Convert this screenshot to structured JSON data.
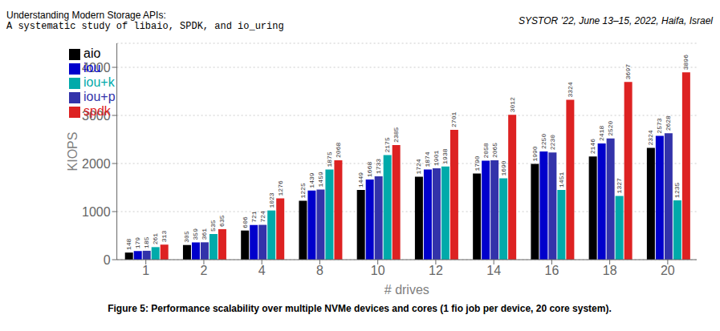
{
  "chart_data": {
    "type": "bar",
    "title": "Understanding Modern Storage APIs:",
    "subtitle": "A systematic study of libaio, SPDK, and io_uring",
    "annotations": [
      "SYSTOR ’22, June 13–15, 2022, Haifa, Israel",
      "Figure 5: Performance scalability over multiple NVMe devices and cores (1 fio job per device, 20 core system)."
    ],
    "x_label": "# drives",
    "y_label": "KIOPS",
    "categories": [
      "1",
      "2",
      "4",
      "8",
      "10",
      "12",
      "14",
      "16",
      "18",
      "20"
    ],
    "series": [
      {
        "name": "aio",
        "color": "#000000",
        "values": [
          148,
          305,
          606,
          1225,
          1449,
          1724,
          1790,
          1990,
          2146,
          2324
        ]
      },
      {
        "name": "iou",
        "color": "#0000cc",
        "values": [
          179,
          359,
          721,
          1439,
          1668,
          1874,
          2058,
          2250,
          2418,
          2573
        ]
      },
      {
        "name": "iou+p",
        "color": "#3333aa",
        "values": [
          185,
          361,
          724,
          1459,
          1733,
          1901,
          2065,
          2230,
          2520,
          2628
        ]
      },
      {
        "name": "iou+k",
        "color": "#00aaaa",
        "values": [
          261,
          535,
          1023,
          1875,
          2175,
          1938,
          1690,
          1451,
          1327,
          1235
        ]
      },
      {
        "name": "spdk",
        "color": "#dd2222",
        "values": [
          313,
          635,
          1276,
          2068,
          2385,
          2701,
          3012,
          3324,
          3697,
          3896
        ]
      }
    ],
    "ylim": [
      0,
      4500
    ],
    "yticks": [
      0,
      1000,
      2000,
      3000,
      4000
    ],
    "grid": true,
    "legend": "upper left",
    "data_labels": true
  }
}
